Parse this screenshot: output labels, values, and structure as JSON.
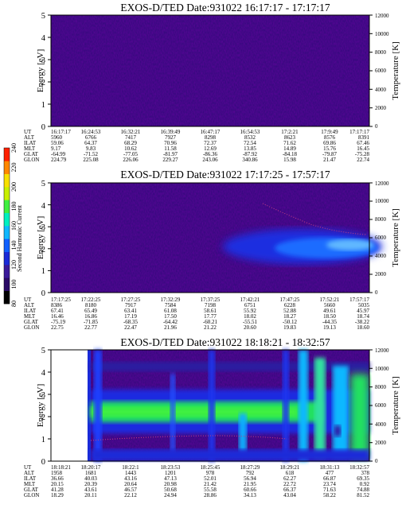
{
  "colorbar": {
    "label": "Second Harmonic Current",
    "ticks": [
      "80",
      "100",
      "120",
      "140",
      "160",
      "180",
      "200",
      "220",
      "240"
    ],
    "colors": [
      "#000000",
      "#2a0a66",
      "#3a1a9a",
      "#1a2ad8",
      "#1060ff",
      "#10b8ff",
      "#00f0c0",
      "#40f040",
      "#c8f000",
      "#f8e000",
      "#ff8800",
      "#ff2000"
    ]
  },
  "chart_data": [
    {
      "type": "heatmap",
      "title": "EXOS-D/TED   Date:931022   16:17:17 - 17:17:17",
      "ylabel": "Energy [eV]",
      "ylabel_right": "Temperature [K]",
      "ylim": [
        0,
        5
      ],
      "ylim_right": [
        0,
        12000
      ],
      "yticks": [
        "0",
        "1",
        "2",
        "3",
        "4",
        "5"
      ],
      "yticks_right": [
        "0",
        "2000",
        "4000",
        "6000",
        "8000",
        "10000",
        "12000"
      ],
      "row_labels": [
        "UT",
        "ALT",
        "ILAT",
        "MLT",
        "GLAT",
        "GLON"
      ],
      "columns": [
        [
          "16:17:17",
          "5960",
          "59.06",
          "9.17",
          "-64.99",
          "224.79"
        ],
        [
          "16:24:53",
          "6766",
          "64.37",
          "9.83",
          "-71.52",
          "225.08"
        ],
        [
          "16:32:21",
          "7417",
          "68.29",
          "10.62",
          "-77.05",
          "226.06"
        ],
        [
          "16:39:49",
          "7927",
          "70.96",
          "11.58",
          "-81.97",
          "229.27"
        ],
        [
          "16:47:17",
          "8298",
          "72.37",
          "12.69",
          "-86.36",
          "243.06"
        ],
        [
          "16:54:53",
          "8532",
          "72.54",
          "13.85",
          "-87.92",
          "340.86"
        ],
        [
          "17:2:21",
          "8623",
          "71.62",
          "14.89",
          "-84.18",
          "15.98"
        ],
        [
          "17:9:49",
          "8576",
          "69.86",
          "15.76",
          "-79.87",
          "21.47"
        ],
        [
          "17:17:17",
          "8391",
          "67.46",
          "16.45",
          "-75.28",
          "22.74"
        ]
      ],
      "features": "uniform deep-purple background, no enhancement"
    },
    {
      "type": "heatmap",
      "title": "EXOS-D/TED   Date:931022   17:17:25 - 17:57:17",
      "ylabel": "Energy [eV]",
      "ylabel_right": "Temperature [K]",
      "ylim": [
        0,
        5
      ],
      "ylim_right": [
        0,
        12000
      ],
      "yticks": [
        "0",
        "1",
        "2",
        "3",
        "4",
        "5"
      ],
      "yticks_right": [
        "0",
        "2000",
        "4000",
        "6000",
        "8000",
        "10000",
        "12000"
      ],
      "row_labels": [
        "UT",
        "ALT",
        "ILAT",
        "MLT",
        "GLAT",
        "GLON"
      ],
      "columns": [
        [
          "17:17:25",
          "8386",
          "67.41",
          "16.46",
          "-75.19",
          "22.75"
        ],
        [
          "17:22:25",
          "8180",
          "65.49",
          "16.86",
          "-71.85",
          "22.77"
        ],
        [
          "17:27:25",
          "7917",
          "63.41",
          "17.19",
          "-68.35",
          "22.47"
        ],
        [
          "17:32:29",
          "7584",
          "61.08",
          "17.50",
          "-64.42",
          "21.96"
        ],
        [
          "17:37:25",
          "7198",
          "58.61",
          "17.77",
          "-60.21",
          "21.22"
        ],
        [
          "17:42:21",
          "6751",
          "55.92",
          "18.02",
          "-55.51",
          "20.60"
        ],
        [
          "17:47:25",
          "6228",
          "52.88",
          "18.27",
          "-50.12",
          "19.83"
        ],
        [
          "17:52:21",
          "5660",
          "49.61",
          "18.50",
          "-44.35",
          "19.13"
        ],
        [
          "17:57:17",
          "5035",
          "45.97",
          "18.74",
          "-38.22",
          "18.60"
        ]
      ],
      "features": "blue enhancement band centered near 2 eV from about 17:42 onward, light-blue core toward 17:55"
    },
    {
      "type": "heatmap",
      "title": "EXOS-D/TED   Date:931022   18:18:21 - 18:32:57",
      "ylabel": "Energy [eV]",
      "ylabel_right": "Temperature [K]",
      "ylim": [
        0,
        5
      ],
      "ylim_right": [
        0,
        12000
      ],
      "yticks": [
        "0",
        "1",
        "2",
        "3",
        "4",
        "5"
      ],
      "yticks_right": [
        "0",
        "2000",
        "4000",
        "6000",
        "8000",
        "10000",
        "12000"
      ],
      "row_labels": [
        "UT",
        "ALT",
        "ILAT",
        "MLT",
        "GLAT",
        "GLON"
      ],
      "columns": [
        [
          "18:18:21",
          "1958",
          "36.66",
          "20.15",
          "41.28",
          "18.29"
        ],
        [
          "18:20:17",
          "1681",
          "40.03",
          "20.39",
          "43.61",
          "20.11"
        ],
        [
          "18:22:1",
          "1443",
          "43.16",
          "20.64",
          "46.57",
          "22.12"
        ],
        [
          "18:23:53",
          "1201",
          "47.13",
          "20.98",
          "50.68",
          "24.94"
        ],
        [
          "18:25:45",
          "978",
          "52.01",
          "21.42",
          "55.58",
          "28.86"
        ],
        [
          "18:27:29",
          "792",
          "56.94",
          "21.95",
          "60.66",
          "34.13"
        ],
        [
          "18:29:21",
          "618",
          "62.27",
          "22.72",
          "66.37",
          "43.04"
        ],
        [
          "18:31:13",
          "477",
          "66.87",
          "23.74",
          "71.63",
          "58.22"
        ],
        [
          "18:32:57",
          "378",
          "69.35",
          "0.92",
          "74.88",
          "81.52"
        ]
      ],
      "features": "no data before about 18:20; strong green/cyan band near 2 eV, vertical bright stripes late in the interval"
    }
  ]
}
